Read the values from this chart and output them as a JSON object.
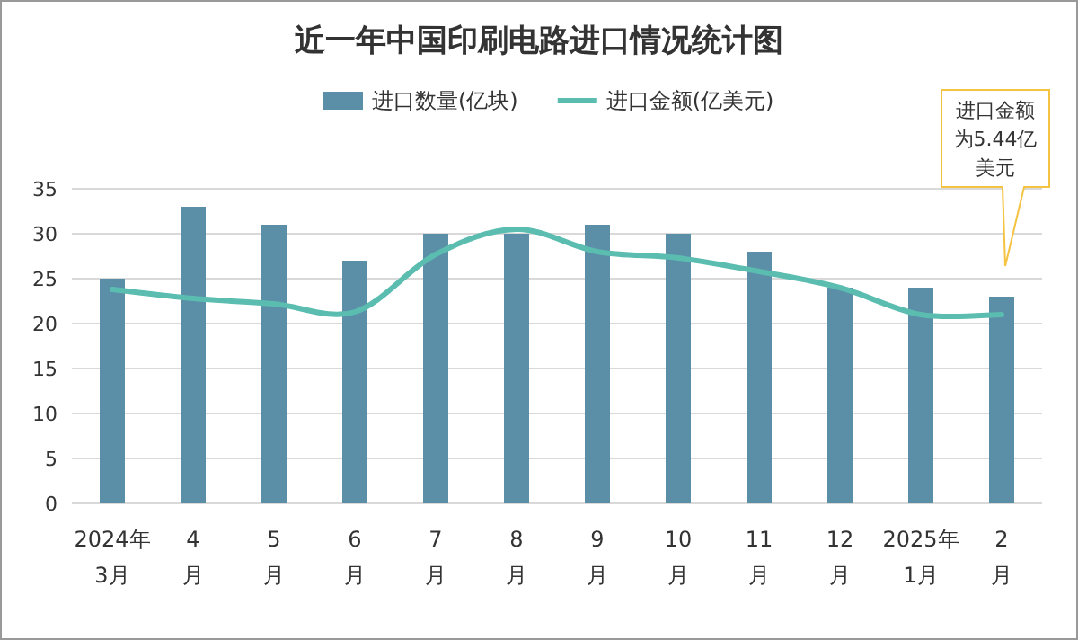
{
  "chart_data": {
    "type": "bar",
    "title": "近一年中国印刷电路进口情况统计图",
    "categories": [
      "2024年\n3月",
      "4\n月",
      "5\n月",
      "6\n月",
      "7\n月",
      "8\n月",
      "9\n月",
      "10\n月",
      "11\n月",
      "12\n月",
      "2025年\n1月",
      "2\n月"
    ],
    "series": [
      {
        "name": "进口数量(亿块)",
        "color": "#5b8fa8",
        "values": [
          25,
          33,
          31,
          27,
          30,
          30,
          31,
          30,
          28,
          24,
          24,
          23
        ]
      },
      {
        "name": "进口金额(亿美元)",
        "type": "line",
        "color": "#5bbcb0",
        "values": [
          23.8,
          22.8,
          22.2,
          21.3,
          27.7,
          30.5,
          28,
          27.3,
          25.8,
          24,
          21,
          21
        ]
      }
    ],
    "ylim": [
      0,
      35
    ],
    "yticks": [
      0,
      5,
      10,
      15,
      20,
      25,
      30,
      35
    ],
    "grid": "y",
    "legend": "top",
    "annotations": [
      "进口金额为5.44亿美元"
    ]
  }
}
